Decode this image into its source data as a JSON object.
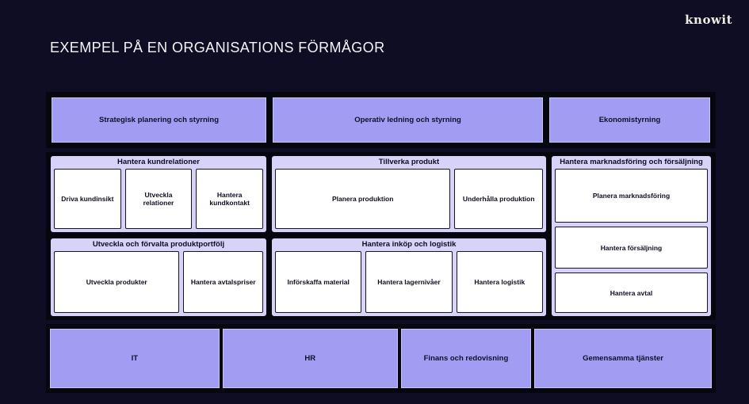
{
  "header": {
    "title": "EXEMPEL PÅ EN ORGANISATIONS FÖRMÅGOR",
    "logo_text": "knowit"
  },
  "top_row": [
    "Strategisk planering och styrning",
    "Operativ ledning och styrning",
    "Ekonomistyrning"
  ],
  "groups": [
    {
      "title": "Hantera kundrelationer",
      "items": [
        "Driva kundinsikt",
        "Utveckla relationer",
        "Hantera kundkontakt"
      ]
    },
    {
      "title": "Utveckla och förvalta produktportfölj",
      "items": [
        "Utveckla produkter",
        "Hantera avtalspriser"
      ]
    },
    {
      "title": "Tillverka produkt",
      "items": [
        "Planera produktion",
        "Underhålla produktion"
      ]
    },
    {
      "title": "Hantera inköp och logistik",
      "items": [
        "Införskaffa material",
        "Hantera lagernivåer",
        "Hantera logistik"
      ]
    },
    {
      "title": "Hantera marknadsföring och försäljning",
      "items": [
        "Planera marknadsföring",
        "Hantera försäljning",
        "Hantera avtal"
      ]
    }
  ],
  "bottom_row": [
    "IT",
    "HR",
    "Finans och redovisning",
    "Gemensamma tjänster"
  ],
  "colors": {
    "background": "#0e0d23",
    "band": "#06060f",
    "capability_fill": "#a19df3",
    "group_fill": "#d7d3f8",
    "item_fill": "#ffffff",
    "text_dark": "#11102a",
    "text_light": "#f4f4f8"
  }
}
